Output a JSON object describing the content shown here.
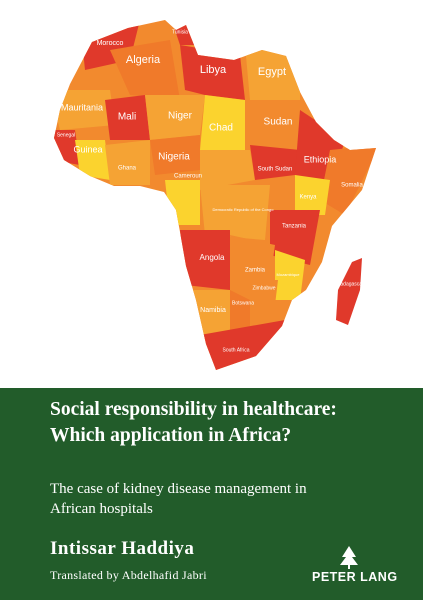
{
  "map": {
    "labels": [
      "Morocco",
      "Tunisia",
      "Algeria",
      "Libya",
      "Egypt",
      "Mauritania",
      "Mali",
      "Niger",
      "Chad",
      "Sudan",
      "Senegal",
      "Guinea",
      "Ghana",
      "Nigeria",
      "Cameroun",
      "South Sudan",
      "Ethiopia",
      "Somalia",
      "Kenya",
      "Democratic Republic of the Congo",
      "Tanzania",
      "Angola",
      "Zambia",
      "Mozambique",
      "Zimbabwe",
      "Namibia",
      "Botswana",
      "South Africa",
      "Madagascar"
    ]
  },
  "cover": {
    "title_lines": [
      "Social responsibility in healthcare:",
      "Which application in Africa?"
    ],
    "subtitle_lines": [
      "The case of kidney disease management in",
      "African hospitals"
    ],
    "author": "Intissar Haddiya",
    "translator": "Translated by Abdelhafid Jabri",
    "publisher": "PETER LANG"
  }
}
